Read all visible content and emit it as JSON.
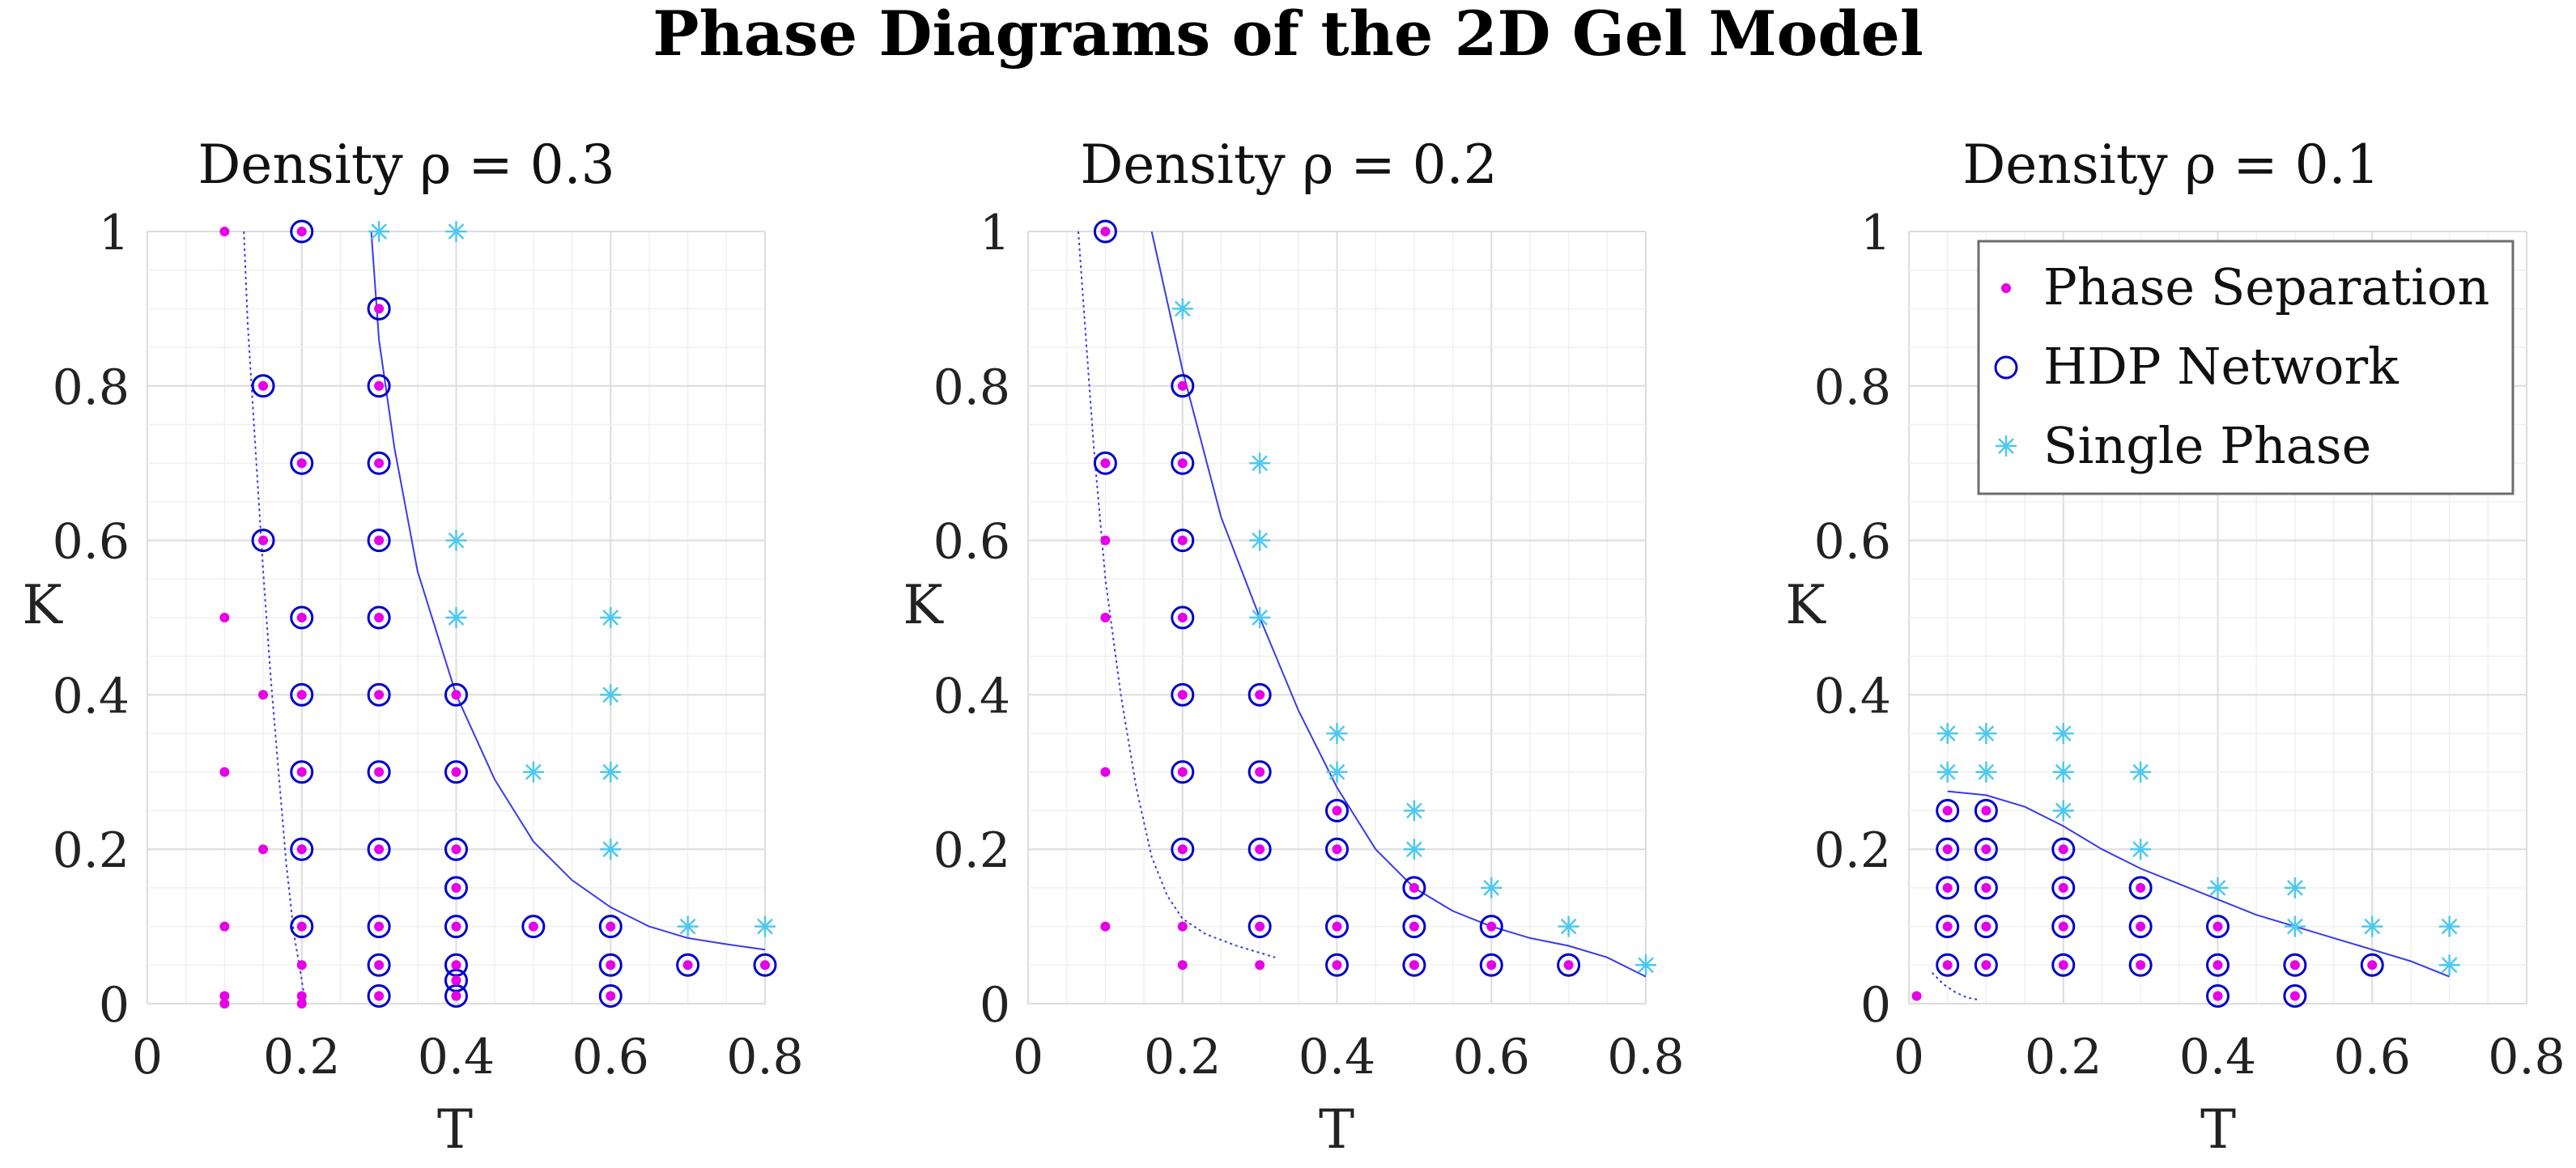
{
  "figure": {
    "title": "Phase Diagrams of the 2D Gel Model",
    "legend": {
      "entries": [
        "Phase Separation",
        "HDP Network",
        "Single Phase"
      ],
      "placement": "top-right of third panel"
    },
    "colors": {
      "phase_separation": "#e600e6",
      "hdp_network": "#0000cc",
      "single_phase": "#4dc8f0",
      "boundary": "#3a3aee",
      "grid_major": "#dcdcdc",
      "grid_minor": "#f0f0f0"
    }
  },
  "chart_data": [
    {
      "type": "scatter",
      "title": "Density ρ = 0.3",
      "xlabel": "T",
      "ylabel": "K",
      "xlim": [
        0,
        0.8
      ],
      "ylim": [
        0,
        1
      ],
      "xticks": [
        "0",
        "0.2",
        "0.4",
        "0.6",
        "0.8"
      ],
      "yticks": [
        "0",
        "0.2",
        "0.4",
        "0.6",
        "0.8",
        "1"
      ],
      "grid": true,
      "series": [
        {
          "name": "Phase Separation",
          "points": [
            [
              0.1,
              1.0
            ],
            [
              0.1,
              0.5
            ],
            [
              0.1,
              0.3
            ],
            [
              0.1,
              0.1
            ],
            [
              0.1,
              0.01
            ],
            [
              0.1,
              0.0
            ],
            [
              0.15,
              0.4
            ],
            [
              0.15,
              0.2
            ],
            [
              0.2,
              0.05
            ],
            [
              0.2,
              0.01
            ],
            [
              0.2,
              0.0
            ],
            [
              0.4,
              0.03
            ],
            [
              0.4,
              0.01
            ]
          ]
        },
        {
          "name": "HDP Network",
          "points": [
            [
              0.15,
              0.8
            ],
            [
              0.15,
              0.6
            ],
            [
              0.2,
              1.0
            ],
            [
              0.2,
              0.7
            ],
            [
              0.2,
              0.5
            ],
            [
              0.2,
              0.4
            ],
            [
              0.2,
              0.3
            ],
            [
              0.2,
              0.2
            ],
            [
              0.2,
              0.1
            ],
            [
              0.3,
              0.9
            ],
            [
              0.3,
              0.8
            ],
            [
              0.3,
              0.7
            ],
            [
              0.3,
              0.6
            ],
            [
              0.3,
              0.5
            ],
            [
              0.3,
              0.4
            ],
            [
              0.3,
              0.3
            ],
            [
              0.3,
              0.2
            ],
            [
              0.3,
              0.1
            ],
            [
              0.3,
              0.05
            ],
            [
              0.3,
              0.01
            ],
            [
              0.4,
              0.4
            ],
            [
              0.4,
              0.3
            ],
            [
              0.4,
              0.2
            ],
            [
              0.4,
              0.15
            ],
            [
              0.4,
              0.1
            ],
            [
              0.4,
              0.05
            ],
            [
              0.4,
              0.03
            ],
            [
              0.4,
              0.01
            ],
            [
              0.5,
              0.1
            ],
            [
              0.6,
              0.1
            ],
            [
              0.6,
              0.05
            ],
            [
              0.6,
              0.01
            ],
            [
              0.7,
              0.05
            ],
            [
              0.8,
              0.05
            ]
          ]
        },
        {
          "name": "Single Phase",
          "points": [
            [
              0.3,
              1.0
            ],
            [
              0.4,
              1.0
            ],
            [
              0.4,
              0.6
            ],
            [
              0.4,
              0.5
            ],
            [
              0.5,
              0.3
            ],
            [
              0.6,
              0.5
            ],
            [
              0.6,
              0.4
            ],
            [
              0.6,
              0.3
            ],
            [
              0.6,
              0.2
            ],
            [
              0.7,
              0.1
            ],
            [
              0.8,
              0.1
            ]
          ]
        }
      ],
      "boundaries": [
        {
          "style": "solid",
          "points": [
            [
              0.29,
              1.0
            ],
            [
              0.3,
              0.86
            ],
            [
              0.32,
              0.72
            ],
            [
              0.35,
              0.56
            ],
            [
              0.4,
              0.4
            ],
            [
              0.45,
              0.29
            ],
            [
              0.5,
              0.21
            ],
            [
              0.55,
              0.16
            ],
            [
              0.6,
              0.125
            ],
            [
              0.65,
              0.1
            ],
            [
              0.7,
              0.085
            ],
            [
              0.75,
              0.077
            ],
            [
              0.8,
              0.07
            ]
          ]
        },
        {
          "style": "dotted",
          "points": [
            [
              0.125,
              1.0
            ],
            [
              0.13,
              0.88
            ],
            [
              0.14,
              0.72
            ],
            [
              0.15,
              0.56
            ],
            [
              0.16,
              0.42
            ],
            [
              0.17,
              0.3
            ],
            [
              0.18,
              0.18
            ],
            [
              0.19,
              0.09
            ],
            [
              0.2,
              0.03
            ],
            [
              0.205,
              0.0
            ]
          ]
        }
      ]
    },
    {
      "type": "scatter",
      "title": "Density ρ = 0.2",
      "xlabel": "T",
      "ylabel": "K",
      "xlim": [
        0,
        0.8
      ],
      "ylim": [
        0,
        1
      ],
      "xticks": [
        "0",
        "0.2",
        "0.4",
        "0.6",
        "0.8"
      ],
      "yticks": [
        "0",
        "0.2",
        "0.4",
        "0.6",
        "0.8",
        "1"
      ],
      "grid": true,
      "series": [
        {
          "name": "Phase Separation",
          "points": [
            [
              0.1,
              0.6
            ],
            [
              0.1,
              0.5
            ],
            [
              0.1,
              0.3
            ],
            [
              0.1,
              0.1
            ],
            [
              0.2,
              0.1
            ],
            [
              0.2,
              0.05
            ],
            [
              0.3,
              0.05
            ]
          ]
        },
        {
          "name": "HDP Network",
          "points": [
            [
              0.1,
              1.0
            ],
            [
              0.1,
              0.7
            ],
            [
              0.2,
              0.8
            ],
            [
              0.2,
              0.7
            ],
            [
              0.2,
              0.6
            ],
            [
              0.2,
              0.5
            ],
            [
              0.2,
              0.4
            ],
            [
              0.2,
              0.3
            ],
            [
              0.2,
              0.2
            ],
            [
              0.3,
              0.4
            ],
            [
              0.3,
              0.3
            ],
            [
              0.3,
              0.2
            ],
            [
              0.3,
              0.1
            ],
            [
              0.4,
              0.25
            ],
            [
              0.4,
              0.2
            ],
            [
              0.4,
              0.1
            ],
            [
              0.4,
              0.05
            ],
            [
              0.5,
              0.15
            ],
            [
              0.5,
              0.1
            ],
            [
              0.5,
              0.05
            ],
            [
              0.6,
              0.1
            ],
            [
              0.6,
              0.05
            ],
            [
              0.7,
              0.05
            ]
          ]
        },
        {
          "name": "Single Phase",
          "points": [
            [
              0.2,
              0.9
            ],
            [
              0.3,
              0.7
            ],
            [
              0.3,
              0.6
            ],
            [
              0.3,
              0.5
            ],
            [
              0.4,
              0.35
            ],
            [
              0.4,
              0.3
            ],
            [
              0.5,
              0.25
            ],
            [
              0.5,
              0.2
            ],
            [
              0.6,
              0.15
            ],
            [
              0.7,
              0.1
            ],
            [
              0.8,
              0.05
            ]
          ]
        }
      ],
      "boundaries": [
        {
          "style": "solid",
          "points": [
            [
              0.16,
              1.0
            ],
            [
              0.2,
              0.82
            ],
            [
              0.25,
              0.63
            ],
            [
              0.3,
              0.5
            ],
            [
              0.35,
              0.38
            ],
            [
              0.4,
              0.28
            ],
            [
              0.45,
              0.2
            ],
            [
              0.5,
              0.15
            ],
            [
              0.55,
              0.12
            ],
            [
              0.6,
              0.1
            ],
            [
              0.65,
              0.085
            ],
            [
              0.7,
              0.075
            ],
            [
              0.75,
              0.06
            ],
            [
              0.8,
              0.035
            ]
          ]
        },
        {
          "style": "dotted",
          "points": [
            [
              0.065,
              1.0
            ],
            [
              0.075,
              0.86
            ],
            [
              0.085,
              0.72
            ],
            [
              0.1,
              0.55
            ],
            [
              0.12,
              0.4
            ],
            [
              0.14,
              0.28
            ],
            [
              0.16,
              0.19
            ],
            [
              0.18,
              0.14
            ],
            [
              0.2,
              0.11
            ],
            [
              0.23,
              0.09
            ],
            [
              0.27,
              0.075
            ],
            [
              0.32,
              0.06
            ]
          ]
        }
      ]
    },
    {
      "type": "scatter",
      "title": "Density ρ = 0.1",
      "xlabel": "T",
      "ylabel": "K",
      "xlim": [
        0,
        0.8
      ],
      "ylim": [
        0,
        1
      ],
      "xticks": [
        "0",
        "0.2",
        "0.4",
        "0.6",
        "0.8"
      ],
      "yticks": [
        "0",
        "0.2",
        "0.4",
        "0.6",
        "0.8",
        "1"
      ],
      "grid": true,
      "series": [
        {
          "name": "Phase Separation",
          "points": [
            [
              0.01,
              0.01
            ]
          ]
        },
        {
          "name": "HDP Network",
          "points": [
            [
              0.05,
              0.25
            ],
            [
              0.05,
              0.2
            ],
            [
              0.05,
              0.15
            ],
            [
              0.05,
              0.1
            ],
            [
              0.05,
              0.05
            ],
            [
              0.1,
              0.25
            ],
            [
              0.1,
              0.2
            ],
            [
              0.1,
              0.15
            ],
            [
              0.1,
              0.1
            ],
            [
              0.1,
              0.05
            ],
            [
              0.2,
              0.2
            ],
            [
              0.2,
              0.15
            ],
            [
              0.2,
              0.1
            ],
            [
              0.2,
              0.05
            ],
            [
              0.3,
              0.15
            ],
            [
              0.3,
              0.1
            ],
            [
              0.3,
              0.05
            ],
            [
              0.4,
              0.1
            ],
            [
              0.4,
              0.05
            ],
            [
              0.4,
              0.01
            ],
            [
              0.5,
              0.05
            ],
            [
              0.5,
              0.01
            ],
            [
              0.6,
              0.05
            ]
          ]
        },
        {
          "name": "Single Phase",
          "points": [
            [
              0.05,
              0.35
            ],
            [
              0.05,
              0.3
            ],
            [
              0.1,
              0.35
            ],
            [
              0.1,
              0.3
            ],
            [
              0.2,
              0.35
            ],
            [
              0.2,
              0.3
            ],
            [
              0.2,
              0.25
            ],
            [
              0.3,
              0.3
            ],
            [
              0.3,
              0.2
            ],
            [
              0.4,
              0.15
            ],
            [
              0.5,
              0.15
            ],
            [
              0.5,
              0.1
            ],
            [
              0.6,
              0.1
            ],
            [
              0.7,
              0.1
            ],
            [
              0.7,
              0.05
            ]
          ]
        }
      ],
      "boundaries": [
        {
          "style": "solid",
          "points": [
            [
              0.05,
              0.275
            ],
            [
              0.1,
              0.27
            ],
            [
              0.15,
              0.255
            ],
            [
              0.2,
              0.23
            ],
            [
              0.25,
              0.2
            ],
            [
              0.3,
              0.175
            ],
            [
              0.35,
              0.155
            ],
            [
              0.4,
              0.135
            ],
            [
              0.45,
              0.115
            ],
            [
              0.5,
              0.1
            ],
            [
              0.55,
              0.085
            ],
            [
              0.6,
              0.07
            ],
            [
              0.65,
              0.055
            ],
            [
              0.7,
              0.035
            ]
          ]
        },
        {
          "style": "dotted",
          "points": [
            [
              0.03,
              0.04
            ],
            [
              0.045,
              0.025
            ],
            [
              0.06,
              0.015
            ],
            [
              0.075,
              0.008
            ],
            [
              0.09,
              0.005
            ]
          ]
        }
      ]
    }
  ]
}
